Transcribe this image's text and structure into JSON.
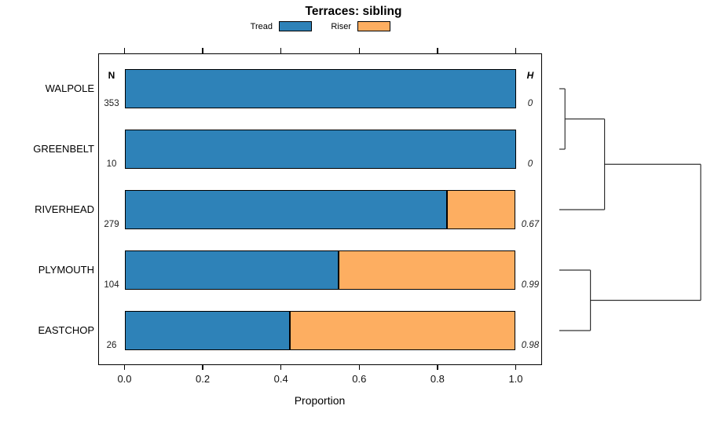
{
  "title": "Terraces: sibling",
  "legend": {
    "items": [
      {
        "label": "Tread",
        "color": "#2E82B8"
      },
      {
        "label": "Riser",
        "color": "#FDAE61"
      }
    ]
  },
  "columns": {
    "n_header": "N",
    "h_header": "H"
  },
  "x_axis": {
    "label": "Proportion",
    "ticks": [
      "0.0",
      "0.2",
      "0.4",
      "0.6",
      "0.8",
      "1.0"
    ]
  },
  "chart_data": {
    "type": "bar",
    "orientation": "horizontal",
    "stacked": true,
    "title": "Terraces: sibling",
    "xlabel": "Proportion",
    "xlim": [
      0,
      1.07
    ],
    "x_ticks": [
      0,
      0.2,
      0.4,
      0.6,
      0.8,
      1.0
    ],
    "grid": false,
    "legend_position": "top",
    "categories": [
      "WALPOLE",
      "GREENBELT",
      "RIVERHEAD",
      "PLYMOUTH",
      "EASTCHOP"
    ],
    "series": [
      {
        "name": "Tread",
        "color": "#2E82B8",
        "values": [
          1.0,
          1.0,
          0.824,
          0.548,
          0.423
        ]
      },
      {
        "name": "Riser",
        "color": "#FDAE61",
        "values": [
          0.0,
          0.0,
          0.176,
          0.452,
          0.577
        ]
      }
    ],
    "N": [
      353,
      10,
      279,
      104,
      26
    ],
    "H": [
      0,
      0,
      0.67,
      0.99,
      0.98
    ],
    "dendrogram": {
      "panel": "right",
      "leaves": [
        "WALPOLE",
        "GREENBELT",
        "RIVERHEAD",
        "PLYMOUTH",
        "EASTCHOP"
      ],
      "merges": [
        {
          "a": 0,
          "b": 1,
          "height": 0.04
        },
        {
          "a": 3,
          "b": 4,
          "height": 0.22
        },
        {
          "a": 5,
          "b": 2,
          "height": 0.32
        },
        {
          "a": 7,
          "b": 6,
          "height": 1.0
        }
      ]
    }
  }
}
